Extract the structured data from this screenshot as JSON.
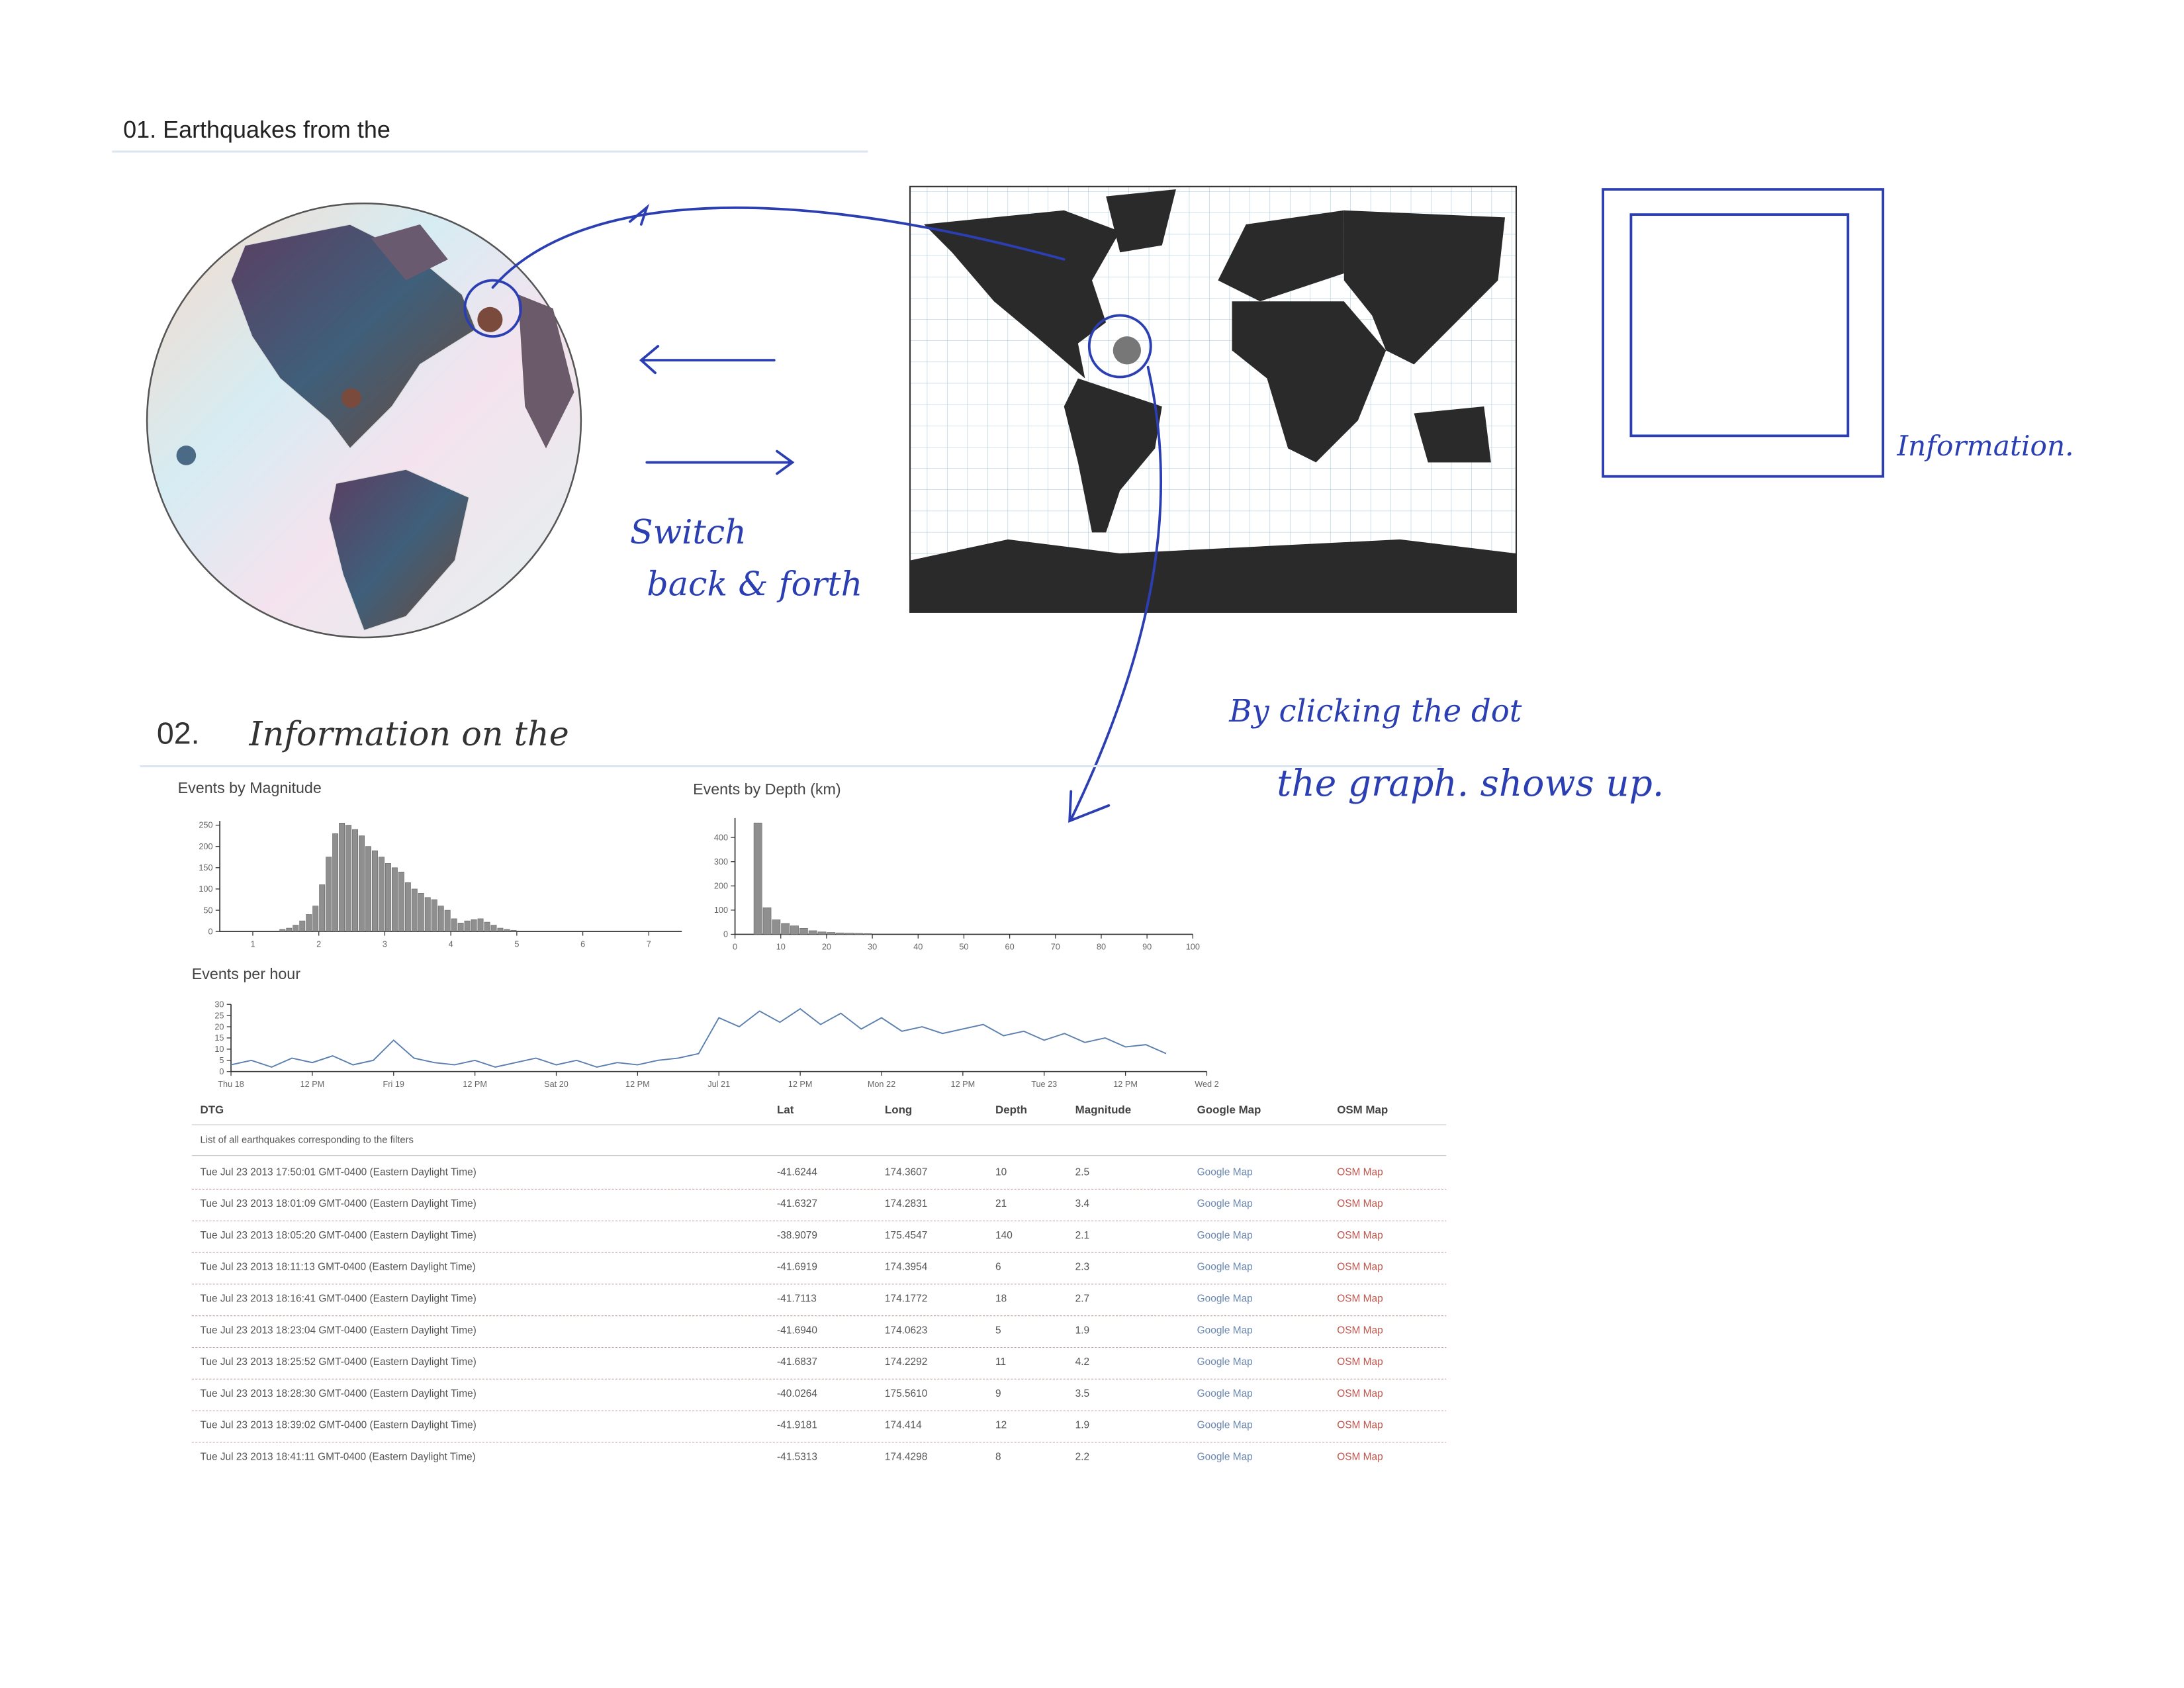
{
  "section1": {
    "heading": "01. Earthquakes from the"
  },
  "notes": {
    "switch": [
      "Switch",
      "back & forth"
    ],
    "info_box": "Information.",
    "click": [
      "By clicking the dot",
      "the graph. shows up."
    ]
  },
  "section2": {
    "number": "02.",
    "heading": "Information on the"
  },
  "charts": [
    {
      "type": "histogram",
      "title": "Events by Magnitude",
      "color": "#8f8f8f",
      "bins": [
        1.4,
        1.5,
        1.6,
        1.7,
        1.8,
        1.9,
        2.0,
        2.1,
        2.2,
        2.3,
        2.4,
        2.5,
        2.6,
        2.7,
        2.8,
        2.9,
        3.0,
        3.1,
        3.2,
        3.3,
        3.4,
        3.5,
        3.6,
        3.7,
        3.8,
        3.9,
        4.0,
        4.1,
        4.2,
        4.3,
        4.4,
        4.5,
        4.6,
        4.7,
        4.8,
        4.9,
        5.0
      ],
      "counts": [
        5,
        8,
        15,
        25,
        40,
        60,
        110,
        175,
        230,
        255,
        250,
        240,
        225,
        200,
        190,
        175,
        160,
        150,
        140,
        115,
        100,
        90,
        80,
        75,
        60,
        50,
        30,
        20,
        25,
        28,
        30,
        22,
        15,
        8,
        5,
        3
      ],
      "xlim": [
        0.5,
        7.5
      ],
      "xticks": [
        1,
        2,
        3,
        4,
        5,
        6,
        7
      ],
      "ylim": [
        0,
        260
      ],
      "yticks": [
        0,
        50,
        100,
        150,
        200,
        250
      ]
    },
    {
      "type": "histogram",
      "title": "Events by Depth (km)",
      "color": "#8f8f8f",
      "bins": [
        4,
        6,
        8,
        10,
        12,
        14,
        16,
        18,
        20,
        22,
        24,
        26,
        28,
        30
      ],
      "counts": [
        460,
        110,
        60,
        45,
        35,
        25,
        15,
        10,
        8,
        6,
        5,
        4,
        3
      ],
      "xlim": [
        0,
        100
      ],
      "xticks": [
        0,
        10,
        20,
        30,
        40,
        50,
        60,
        70,
        80,
        90,
        100
      ],
      "ylim": [
        0,
        480
      ],
      "yticks": [
        0,
        100,
        200,
        300,
        400
      ]
    },
    {
      "type": "line",
      "title": "Events per hour",
      "color": "#5b7fae",
      "values": [
        3,
        5,
        2,
        6,
        4,
        7,
        3,
        5,
        14,
        6,
        4,
        3,
        5,
        2,
        4,
        6,
        3,
        5,
        2,
        4,
        3,
        5,
        6,
        8,
        24,
        20,
        27,
        22,
        28,
        21,
        26,
        19,
        24,
        18,
        20,
        17,
        19,
        21,
        16,
        18,
        14,
        17,
        13,
        15,
        11,
        12,
        8
      ],
      "xlim": [
        0,
        48
      ],
      "xticks": [
        {
          "value": 0,
          "label": "Thu 18"
        },
        {
          "value": 4,
          "label": "12 PM"
        },
        {
          "value": 8,
          "label": "Fri 19"
        },
        {
          "value": 12,
          "label": "12 PM"
        },
        {
          "value": 16,
          "label": "Sat 20"
        },
        {
          "value": 20,
          "label": "12 PM"
        },
        {
          "value": 24,
          "label": "Jul 21"
        },
        {
          "value": 28,
          "label": "12 PM"
        },
        {
          "value": 32,
          "label": "Mon 22"
        },
        {
          "value": 36,
          "label": "12 PM"
        },
        {
          "value": 40,
          "label": "Tue 23"
        },
        {
          "value": 44,
          "label": "12 PM"
        },
        {
          "value": 48,
          "label": "Wed 2"
        }
      ],
      "ylim": [
        0,
        30
      ],
      "yticks": [
        0,
        5,
        10,
        15,
        20,
        25,
        30
      ]
    }
  ],
  "table": {
    "columns": [
      "DTG",
      "Lat",
      "Long",
      "Depth",
      "Magnitude",
      "Google Map",
      "OSM Map"
    ],
    "caption": "List of all earthquakes corresponding to the filters",
    "rows": [
      [
        "Tue Jul 23 2013 17:50:01 GMT-0400 (Eastern Daylight Time)",
        "-41.6244",
        "174.3607",
        "10",
        "2.5",
        "Google Map",
        "OSM Map"
      ],
      [
        "Tue Jul 23 2013 18:01:09 GMT-0400 (Eastern Daylight Time)",
        "-41.6327",
        "174.2831",
        "21",
        "3.4",
        "Google Map",
        "OSM Map"
      ],
      [
        "Tue Jul 23 2013 18:05:20 GMT-0400 (Eastern Daylight Time)",
        "-38.9079",
        "175.4547",
        "140",
        "2.1",
        "Google Map",
        "OSM Map"
      ],
      [
        "Tue Jul 23 2013 18:11:13 GMT-0400 (Eastern Daylight Time)",
        "-41.6919",
        "174.3954",
        "6",
        "2.3",
        "Google Map",
        "OSM Map"
      ],
      [
        "Tue Jul 23 2013 18:16:41 GMT-0400 (Eastern Daylight Time)",
        "-41.7113",
        "174.1772",
        "18",
        "2.7",
        "Google Map",
        "OSM Map"
      ],
      [
        "Tue Jul 23 2013 18:23:04 GMT-0400 (Eastern Daylight Time)",
        "-41.6940",
        "174.0623",
        "5",
        "1.9",
        "Google Map",
        "OSM Map"
      ],
      [
        "Tue Jul 23 2013 18:25:52 GMT-0400 (Eastern Daylight Time)",
        "-41.6837",
        "174.2292",
        "11",
        "4.2",
        "Google Map",
        "OSM Map"
      ],
      [
        "Tue Jul 23 2013 18:28:30 GMT-0400 (Eastern Daylight Time)",
        "-40.0264",
        "175.5610",
        "9",
        "3.5",
        "Google Map",
        "OSM Map"
      ],
      [
        "Tue Jul 23 2013 18:39:02 GMT-0400 (Eastern Daylight Time)",
        "-41.9181",
        "174.414",
        "12",
        "1.9",
        "Google Map",
        "OSM Map"
      ],
      [
        "Tue Jul 23 2013 18:41:11 GMT-0400 (Eastern Daylight Time)",
        "-41.5313",
        "174.4298",
        "8",
        "2.2",
        "Google Map",
        "OSM Map"
      ]
    ]
  }
}
